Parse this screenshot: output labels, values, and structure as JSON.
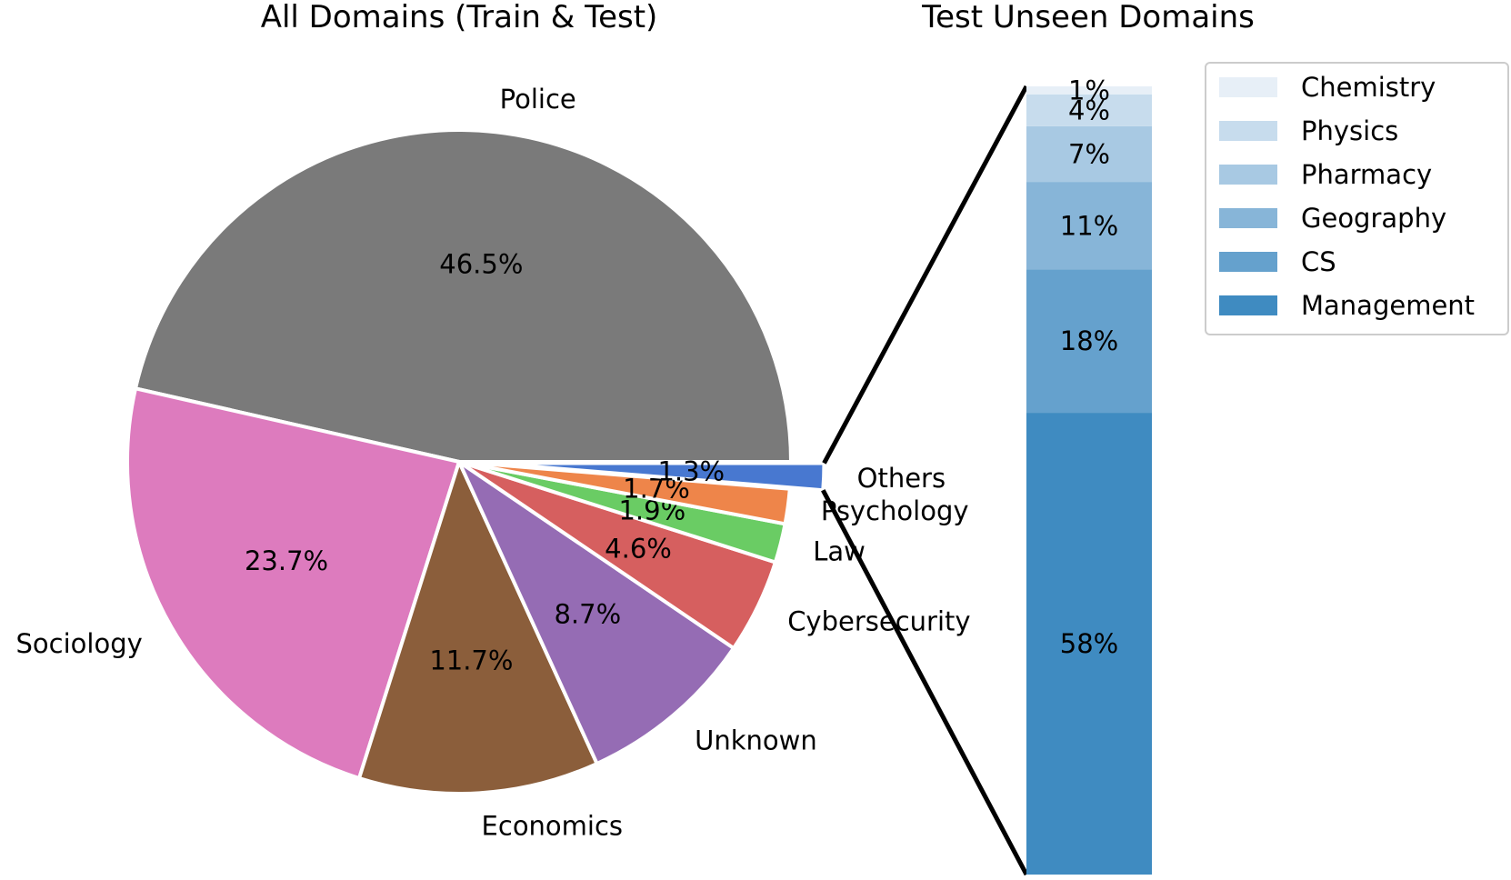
{
  "chart_data": [
    {
      "type": "pie",
      "title": "All Domains (Train & Test)",
      "slices": [
        {
          "label": "Police",
          "value": 46.5,
          "pct_label": "46.5%",
          "color": "#7a7a7a"
        },
        {
          "label": "Sociology",
          "value": 23.7,
          "pct_label": "23.7%",
          "color": "#dd7bbe"
        },
        {
          "label": "Economics",
          "value": 11.7,
          "pct_label": "11.7%",
          "color": "#8b5e3b"
        },
        {
          "label": "Unknown",
          "value": 8.7,
          "pct_label": "8.7%",
          "color": "#956cb4"
        },
        {
          "label": "Cybersecurity",
          "value": 4.6,
          "pct_label": "4.6%",
          "color": "#d65f5f"
        },
        {
          "label": "Law",
          "value": 1.9,
          "pct_label": "1.9%",
          "color": "#6acc64"
        },
        {
          "label": "Psychology",
          "value": 1.7,
          "pct_label": "1.7%",
          "color": "#ee854a"
        },
        {
          "label": "Others",
          "value": 1.3,
          "pct_label": "1.3%",
          "color": "#4878d0",
          "exploded": true
        }
      ],
      "start_angle_deg": 0,
      "direction": "counterclockwise"
    },
    {
      "type": "bar",
      "subtype": "stacked",
      "title": "Test Unseen Domains",
      "series": [
        {
          "name": "Management",
          "value": 58,
          "label": "58%",
          "color": "#3f8bc1"
        },
        {
          "name": "CS",
          "value": 18,
          "label": "18%",
          "color": "#65a1cd"
        },
        {
          "name": "Geography",
          "value": 11,
          "label": "11%",
          "color": "#87b5d8"
        },
        {
          "name": "Pharmacy",
          "value": 7,
          "label": "7%",
          "color": "#a8c9e3"
        },
        {
          "name": "Physics",
          "value": 4,
          "label": "4%",
          "color": "#c7dced"
        },
        {
          "name": "Chemistry",
          "value": 1,
          "label": "1%",
          "color": "#e7eff7"
        }
      ],
      "legend": {
        "placement": "top-right",
        "order": [
          "Chemistry",
          "Physics",
          "Pharmacy",
          "Geography",
          "CS",
          "Management"
        ]
      }
    }
  ]
}
